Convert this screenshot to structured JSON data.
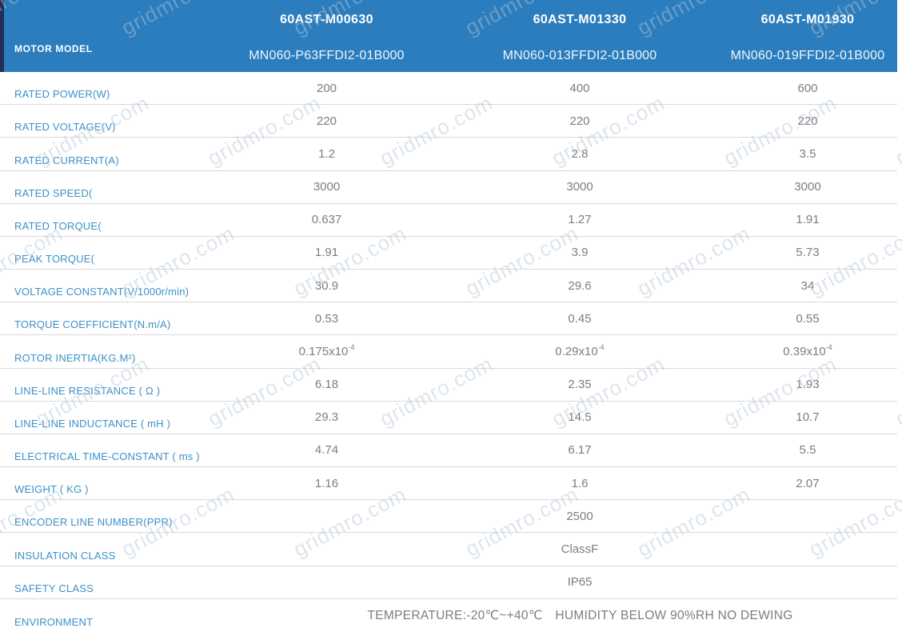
{
  "watermark_text": "gridmro.com",
  "colors": {
    "header_background": "#2b7dbd",
    "header_edge_stripe": "#232d55",
    "label_text": "#3d90c9",
    "value_text": "#7d7d7d",
    "row_border": "#d9d9d9",
    "watermark": "rgba(180,198,214,0.45)"
  },
  "header": {
    "row_label": "MOTOR MODEL",
    "columns": [
      {
        "model": "60AST-M00630",
        "part_number": "MN060-P63FFDI2-01B000"
      },
      {
        "model": "60AST-M01330",
        "part_number": "MN060-013FFDI2-01B000"
      },
      {
        "model": "60AST-M01930",
        "part_number": "MN060-019FFDI2-01B000"
      }
    ]
  },
  "rows": [
    {
      "label": "RATED POWER(W)",
      "values": [
        "200",
        "400",
        "600"
      ]
    },
    {
      "label": "RATED VOLTAGE(V)",
      "values": [
        "220",
        "220",
        "220"
      ]
    },
    {
      "label": "RATED CURRENT(A)",
      "values": [
        "1.2",
        "2.8",
        "3.5"
      ]
    },
    {
      "label": "RATED SPEED(",
      "values": [
        "3000",
        "3000",
        "3000"
      ]
    },
    {
      "label": "RATED TORQUE(",
      "values": [
        "0.637",
        "1.27",
        "1.91"
      ]
    },
    {
      "label": "PEAK TORQUE(",
      "values": [
        "1.91",
        "3.9",
        "5.73"
      ]
    },
    {
      "label": "VOLTAGE CONSTANT(V/1000r/min)",
      "values": [
        "30.9",
        "29.6",
        "34"
      ]
    },
    {
      "label": "TORQUE COEFFICIENT(N.m/A)",
      "values": [
        "0.53",
        "0.45",
        "0.55"
      ]
    },
    {
      "label": "ROTOR INERTIA(KG.M²)",
      "values": [
        {
          "base": "0.175x10",
          "exp": "-4"
        },
        {
          "base": "0.29x10",
          "exp": "-4"
        },
        {
          "base": "0.39x10",
          "exp": "-4"
        }
      ]
    },
    {
      "label": "LINE-LINE RESISTANCE ( Ω )",
      "values": [
        "6.18",
        "2.35",
        "1.93"
      ]
    },
    {
      "label": "LINE-LINE INDUCTANCE ( mH )",
      "values": [
        "29.3",
        "14.5",
        "10.7"
      ]
    },
    {
      "label": "ELECTRICAL TIME-CONSTANT ( ms )",
      "values": [
        "4.74",
        "6.17",
        "5.5"
      ]
    },
    {
      "label": "WEIGHT ( KG )",
      "values": [
        "1.16",
        "1.6",
        "2.07"
      ]
    },
    {
      "label": "ENCODER LINE NUMBER(PPR)",
      "span": "2500"
    },
    {
      "label": "INSULATION CLASS",
      "span": "ClassF"
    },
    {
      "label": "SAFETY CLASS",
      "span": "IP65"
    },
    {
      "label": "ENVIRONMENT",
      "span": "TEMPERATURE:-20℃~+40℃ HUMIDITY BELOW 90%RH NO DEWING",
      "wide": true
    }
  ]
}
